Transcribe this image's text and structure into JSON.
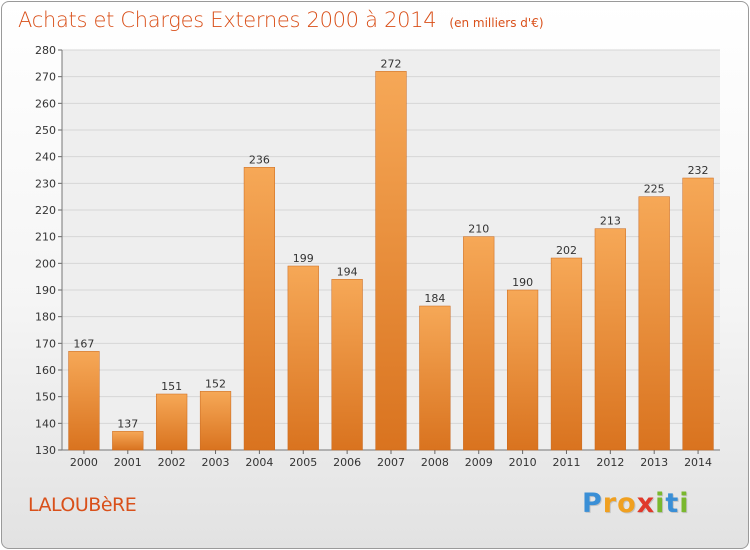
{
  "header": {
    "title": "Achats et Charges Externes 2000 à 2014",
    "subtitle": "(en milliers d'€)"
  },
  "footer": {
    "commune": "LALOUBèRE",
    "logo_letters": [
      {
        "ch": "P",
        "color": "#3a8fd6"
      },
      {
        "ch": "r",
        "color": "#f0a020"
      },
      {
        "ch": "o",
        "color": "#f0a020"
      },
      {
        "ch": "x",
        "color": "#e0392b"
      },
      {
        "ch": "i",
        "color": "#7ab82e"
      },
      {
        "ch": "t",
        "color": "#3a8fd6"
      },
      {
        "ch": "i",
        "color": "#7ab82e"
      }
    ]
  },
  "chart_data": {
    "type": "bar",
    "categories": [
      "2000",
      "2001",
      "2002",
      "2003",
      "2004",
      "2005",
      "2006",
      "2007",
      "2008",
      "2009",
      "2010",
      "2011",
      "2012",
      "2013",
      "2014"
    ],
    "values": [
      167,
      137,
      151,
      152,
      236,
      199,
      194,
      272,
      184,
      210,
      190,
      202,
      213,
      225,
      232
    ],
    "ylim": [
      130,
      280
    ],
    "yticks": [
      130,
      140,
      150,
      160,
      170,
      180,
      190,
      200,
      210,
      220,
      230,
      240,
      250,
      260,
      270,
      280
    ],
    "grid": true,
    "bar_color_top": "#f6a857",
    "bar_color_bottom": "#d9731f"
  }
}
